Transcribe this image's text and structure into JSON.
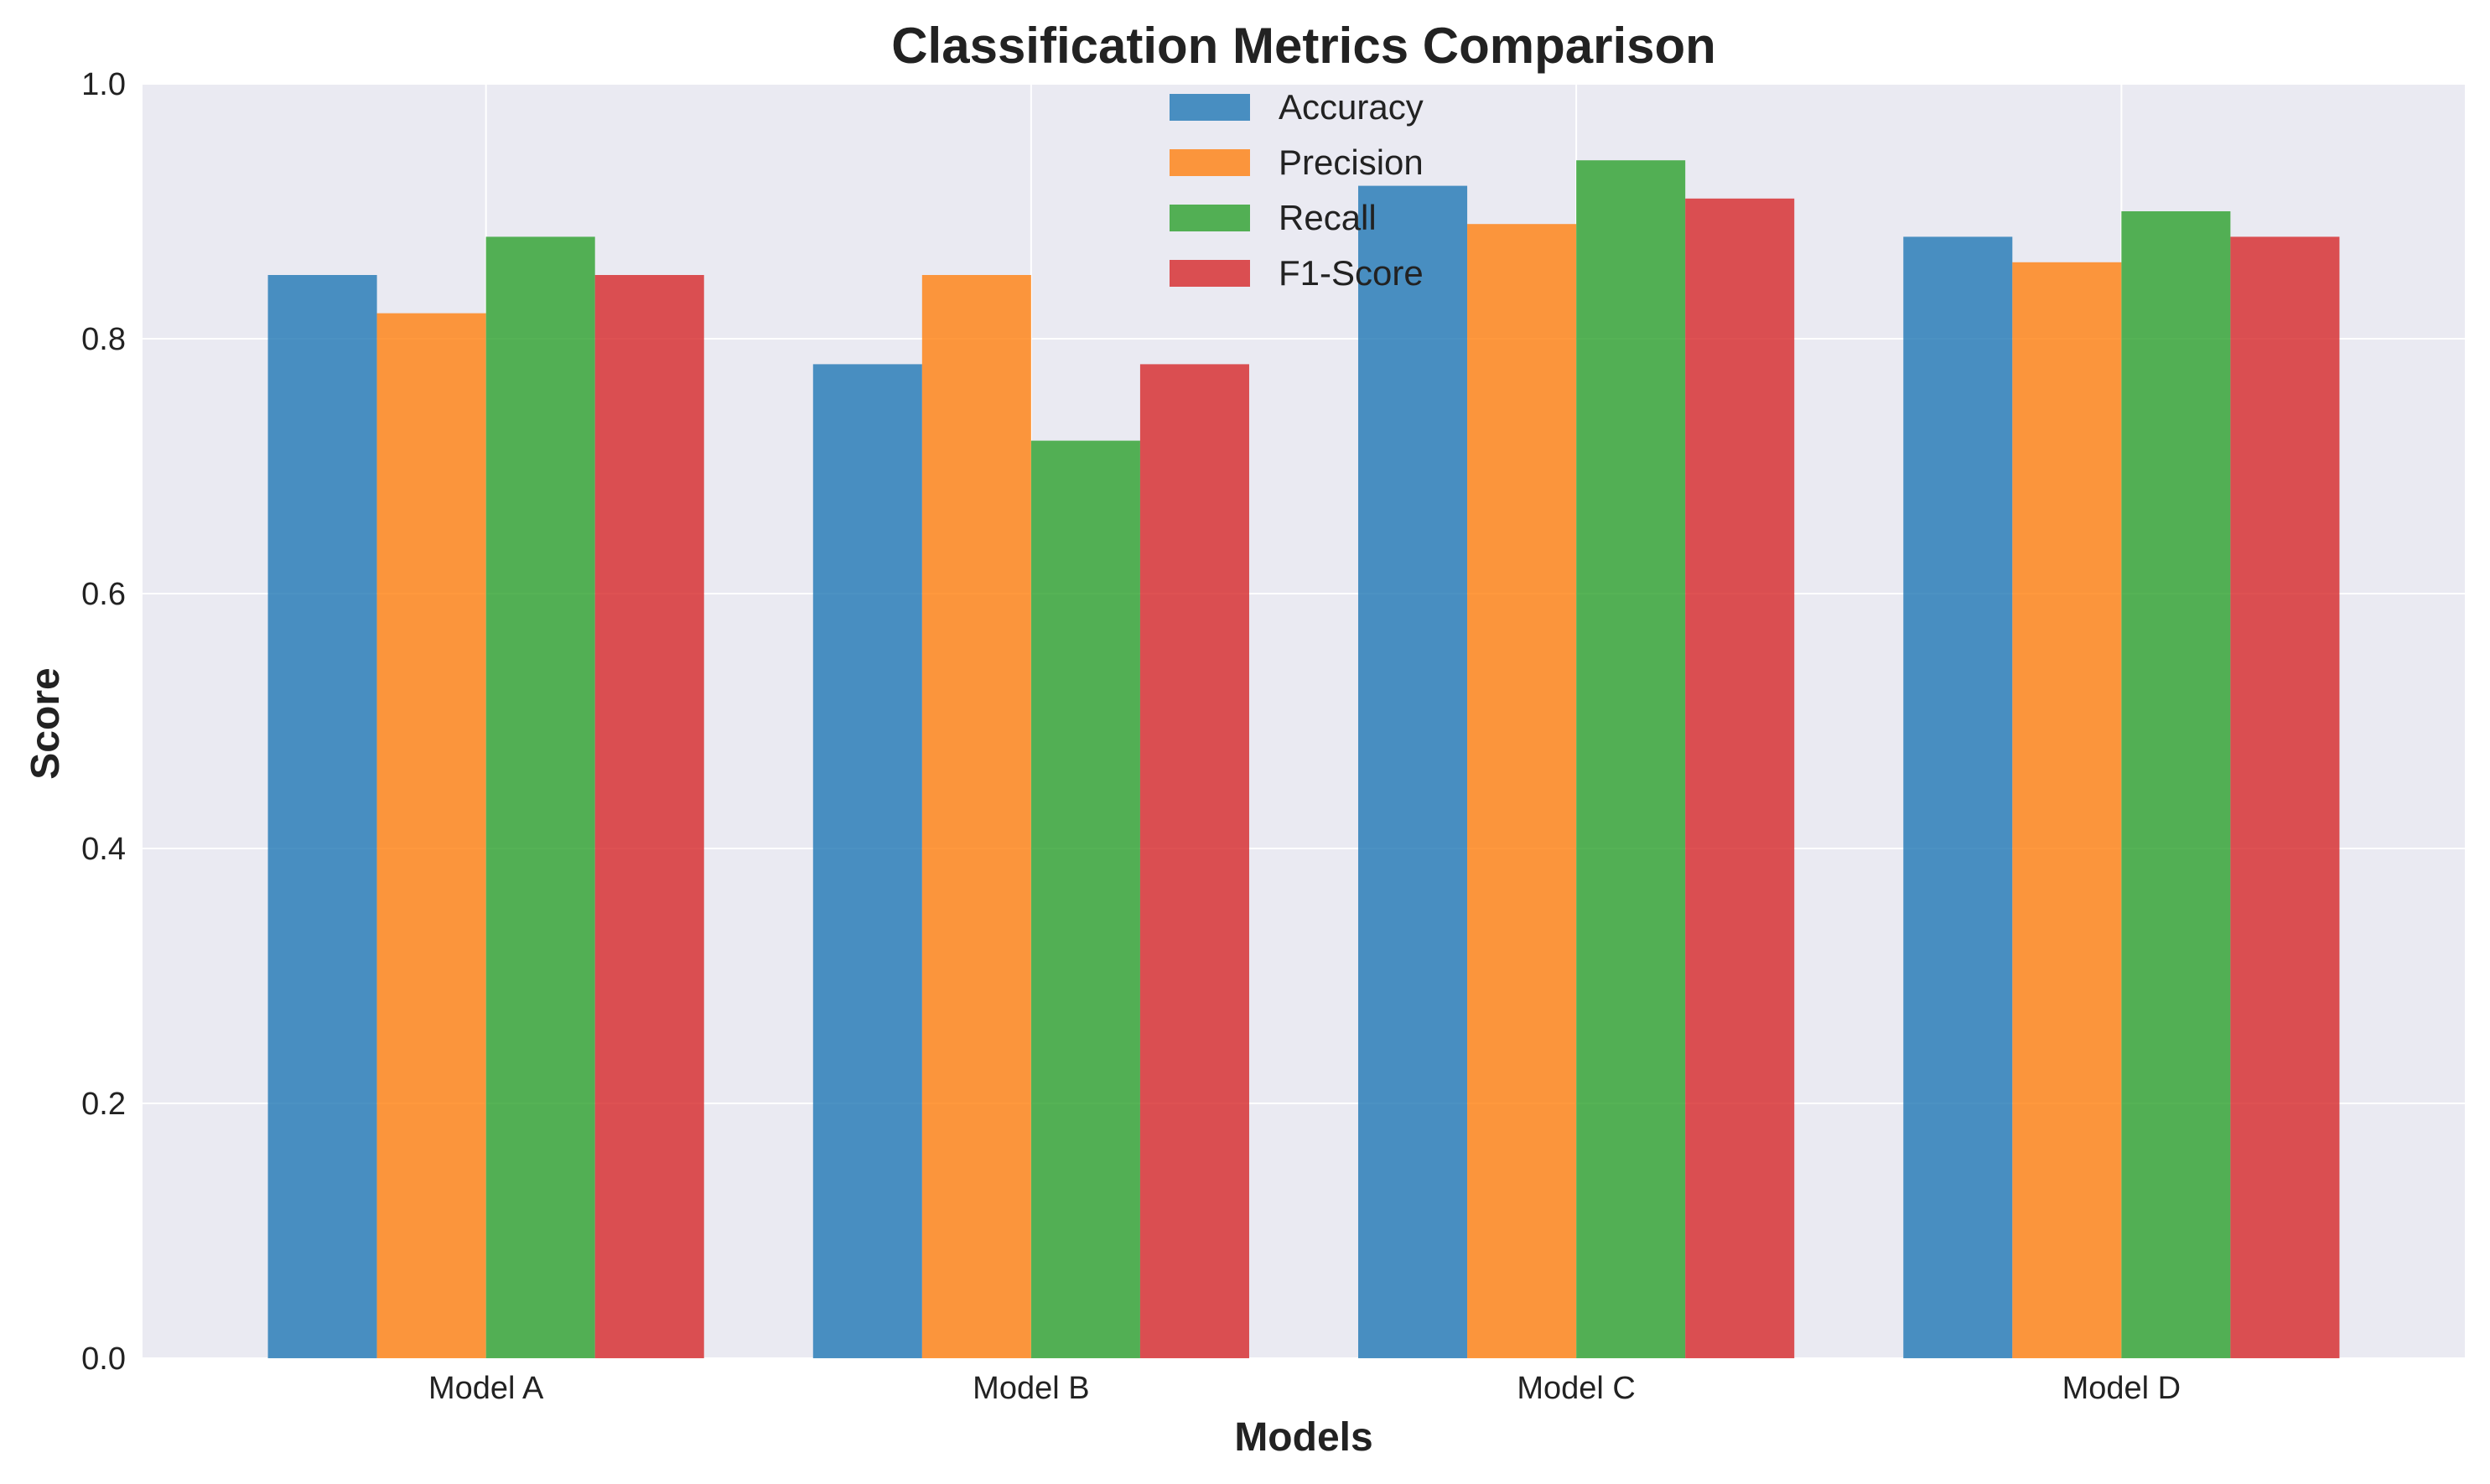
{
  "chart_data": {
    "type": "bar",
    "title": "Classification Metrics Comparison",
    "xlabel": "Models",
    "ylabel": "Score",
    "categories": [
      "Model A",
      "Model B",
      "Model C",
      "Model D"
    ],
    "ylim": [
      0,
      1.0
    ],
    "yticks": [
      "0.0",
      "0.2",
      "0.4",
      "0.6",
      "0.8",
      "1.0"
    ],
    "grid": true,
    "legend_position": "top-center",
    "series": [
      {
        "name": "Accuracy",
        "color": "#1f77b4",
        "values": [
          0.85,
          0.78,
          0.92,
          0.88
        ]
      },
      {
        "name": "Precision",
        "color": "#ff7f0e",
        "values": [
          0.82,
          0.85,
          0.89,
          0.86
        ]
      },
      {
        "name": "Recall",
        "color": "#2ca02c",
        "values": [
          0.88,
          0.72,
          0.94,
          0.9
        ]
      },
      {
        "name": "F1-Score",
        "color": "#d62728",
        "values": [
          0.85,
          0.78,
          0.91,
          0.88
        ]
      }
    ],
    "colors": {
      "plot_background": "#eaeaf2",
      "grid": "#ffffff"
    }
  }
}
